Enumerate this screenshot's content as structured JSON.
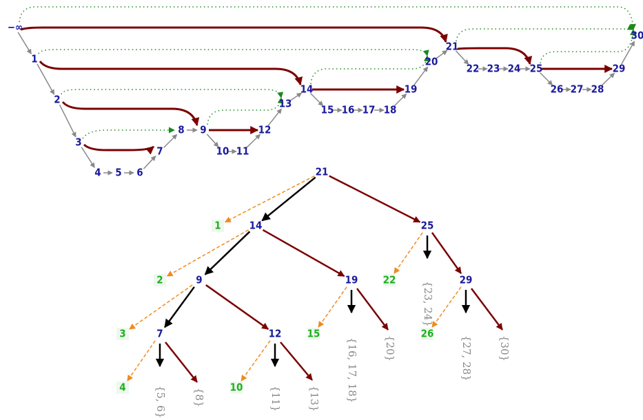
{
  "graph": {
    "nodes": [
      "−∞",
      "1",
      "2",
      "3",
      "4",
      "5",
      "6",
      "7",
      "8",
      "9",
      "10",
      "11",
      "12",
      "13",
      "14",
      "15",
      "16",
      "17",
      "18",
      "19",
      "20",
      "21",
      "22",
      "23",
      "24",
      "25",
      "26",
      "27",
      "28",
      "29",
      "30"
    ]
  },
  "tree": {
    "nodes": [
      "21",
      "14",
      "25",
      "9",
      "19",
      "29",
      "7",
      "12"
    ],
    "leaves": [
      "1",
      "2",
      "3",
      "4",
      "10",
      "15",
      "22",
      "26"
    ],
    "sets": [
      "{5, 6}",
      "{8}",
      "{11}",
      "{13}",
      "{16, 17, 18}",
      "{20}",
      "{23, 24}",
      "{27, 28}",
      "{30}"
    ]
  }
}
